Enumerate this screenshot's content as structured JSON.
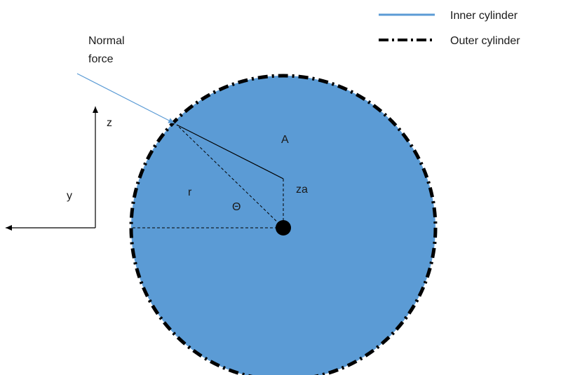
{
  "legend": {
    "inner_label": "Inner cylinder",
    "outer_label": "Outer cylinder"
  },
  "labels": {
    "normal_force_line1": "Normal",
    "normal_force_line2": "force",
    "z_axis": "z",
    "y_axis": "y",
    "radius": "r",
    "theta": "Θ",
    "area": "A",
    "za": "za"
  },
  "colors": {
    "inner_fill": "#5b9bd5",
    "outer_dash": "#000000",
    "axis": "#000000",
    "force_arrow": "#5b9bd5"
  }
}
